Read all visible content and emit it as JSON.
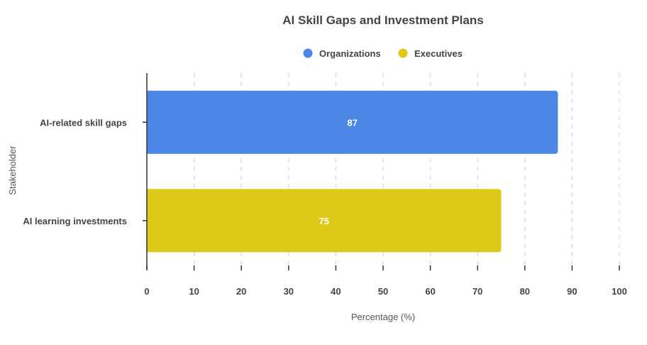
{
  "chart_data": {
    "type": "bar",
    "orientation": "horizontal",
    "title": "AI Skill Gaps and Investment Plans",
    "xlabel": "Percentage (%)",
    "ylabel": "Stakeholder",
    "xlim": [
      0,
      100
    ],
    "xticks": [
      0,
      10,
      20,
      30,
      40,
      50,
      60,
      70,
      80,
      90,
      100
    ],
    "grid": "vertical-dashed",
    "legend_position": "top",
    "categories": [
      "AI-related skill gaps",
      "AI learning investments"
    ],
    "series": [
      {
        "name": "Organizations",
        "color": "#4C87E6",
        "values": [
          87,
          null
        ]
      },
      {
        "name": "Executives",
        "color": "#DDC918",
        "values": [
          null,
          75
        ]
      }
    ],
    "data_labels": [
      "87",
      "75"
    ]
  }
}
